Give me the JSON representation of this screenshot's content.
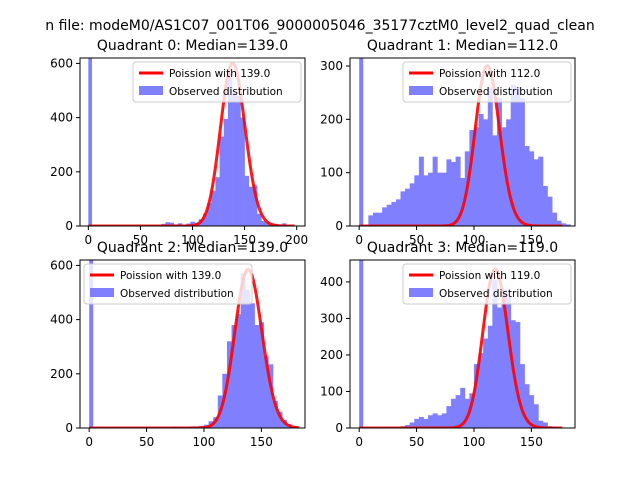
{
  "figure": {
    "suptitle": "n file: modeM0/AS1C07_001T06_9000005046_35177cztM0_level2_quad_clean",
    "colors": {
      "hist": "#8080ff",
      "curve": "#ff0000",
      "axes": "#000000",
      "background": "#ffffff"
    }
  },
  "chart_data": [
    {
      "type": "bar",
      "title": "Quadrant 0: Median=139.0",
      "legend": {
        "curve_label": "Poission with 139.0",
        "hist_label": "Observed distribution",
        "placement": "top-right"
      },
      "xlim": [
        -8,
        208
      ],
      "ylim": [
        0,
        620
      ],
      "xticks": [
        0,
        50,
        100,
        150,
        200
      ],
      "xtick_labels": [
        "0",
        "50",
        "100",
        "150",
        "200"
      ],
      "yticks": [
        0,
        200,
        400,
        600
      ],
      "ytick_labels": [
        "0",
        "200",
        "400",
        "600"
      ],
      "spike": {
        "x": 0,
        "width": 3.5,
        "height": 620
      },
      "bin_width": 3.9,
      "bins": [
        [
          70,
          8
        ],
        [
          74,
          14
        ],
        [
          78,
          12
        ],
        [
          82,
          6
        ],
        [
          86,
          10
        ],
        [
          90,
          5
        ],
        [
          94,
          9
        ],
        [
          98,
          16
        ],
        [
          102,
          12
        ],
        [
          106,
          25
        ],
        [
          110,
          45
        ],
        [
          114,
          85
        ],
        [
          118,
          130
        ],
        [
          122,
          180
        ],
        [
          126,
          330
        ],
        [
          130,
          395
        ],
        [
          134,
          565
        ],
        [
          138,
          490
        ],
        [
          142,
          480
        ],
        [
          146,
          400
        ],
        [
          150,
          185
        ],
        [
          154,
          145
        ],
        [
          158,
          150
        ],
        [
          162,
          45
        ],
        [
          166,
          18
        ],
        [
          170,
          15
        ],
        [
          174,
          10
        ],
        [
          178,
          8
        ],
        [
          182,
          5
        ],
        [
          186,
          10
        ],
        [
          190,
          3
        ]
      ],
      "poisson": {
        "mean": 139.0,
        "peak": 600,
        "x_range": [
          0,
          198
        ]
      }
    },
    {
      "type": "bar",
      "title": "Quadrant 1: Median=112.0",
      "legend": {
        "curve_label": "Poission with 112.0",
        "hist_label": "Observed distribution",
        "placement": "top-right"
      },
      "xlim": [
        -8,
        188
      ],
      "ylim": [
        0,
        315
      ],
      "xticks": [
        0,
        50,
        100,
        150
      ],
      "xtick_labels": [
        "0",
        "50",
        "100",
        "150"
      ],
      "yticks": [
        0,
        100,
        200,
        300
      ],
      "ytick_labels": [
        "0",
        "100",
        "200",
        "300"
      ],
      "spike": {
        "x": 0,
        "width": 3.5,
        "height": 315
      },
      "bin_width": 4.0,
      "bins": [
        [
          4,
          2
        ],
        [
          8,
          20
        ],
        [
          12,
          25
        ],
        [
          16,
          25
        ],
        [
          20,
          35
        ],
        [
          24,
          40
        ],
        [
          28,
          45
        ],
        [
          32,
          50
        ],
        [
          36,
          65
        ],
        [
          40,
          70
        ],
        [
          44,
          80
        ],
        [
          48,
          95
        ],
        [
          52,
          130
        ],
        [
          56,
          95
        ],
        [
          60,
          100
        ],
        [
          64,
          130
        ],
        [
          68,
          100
        ],
        [
          72,
          100
        ],
        [
          76,
          125
        ],
        [
          80,
          120
        ],
        [
          84,
          130
        ],
        [
          88,
          90
        ],
        [
          92,
          140
        ],
        [
          96,
          180
        ],
        [
          100,
          185
        ],
        [
          104,
          210
        ],
        [
          108,
          200
        ],
        [
          112,
          260
        ],
        [
          116,
          170
        ],
        [
          120,
          240
        ],
        [
          124,
          185
        ],
        [
          128,
          200
        ],
        [
          132,
          265
        ],
        [
          136,
          260
        ],
        [
          140,
          240
        ],
        [
          144,
          150
        ],
        [
          148,
          140
        ],
        [
          152,
          125
        ],
        [
          156,
          130
        ],
        [
          160,
          75
        ],
        [
          164,
          55
        ],
        [
          168,
          25
        ],
        [
          172,
          10
        ],
        [
          176,
          5
        ],
        [
          180,
          3
        ]
      ],
      "poisson": {
        "mean": 112.0,
        "peak": 300,
        "x_range": [
          0,
          177
        ]
      }
    },
    {
      "type": "bar",
      "title": "Quadrant 2: Median=139.0",
      "legend": {
        "curve_label": "Poission with 139.0",
        "hist_label": "Observed distribution",
        "placement": "top-left"
      },
      "xlim": [
        -8,
        188
      ],
      "ylim": [
        0,
        620
      ],
      "xticks": [
        0,
        50,
        100,
        150
      ],
      "xtick_labels": [
        "0",
        "50",
        "100",
        "150"
      ],
      "yticks": [
        0,
        200,
        400,
        600
      ],
      "ytick_labels": [
        "0",
        "200",
        "400",
        "600"
      ],
      "spike": {
        "x": 0,
        "width": 3.5,
        "height": 620
      },
      "bin_width": 4.0,
      "bins": [
        [
          72,
          5
        ],
        [
          76,
          4
        ],
        [
          80,
          3
        ],
        [
          84,
          5
        ],
        [
          88,
          6
        ],
        [
          92,
          6
        ],
        [
          96,
          8
        ],
        [
          100,
          12
        ],
        [
          104,
          25
        ],
        [
          108,
          40
        ],
        [
          112,
          120
        ],
        [
          116,
          200
        ],
        [
          120,
          320
        ],
        [
          124,
          380
        ],
        [
          128,
          420
        ],
        [
          132,
          570
        ],
        [
          136,
          510
        ],
        [
          140,
          460
        ],
        [
          144,
          380
        ],
        [
          148,
          390
        ],
        [
          152,
          265
        ],
        [
          156,
          235
        ],
        [
          160,
          100
        ],
        [
          164,
          60
        ],
        [
          168,
          30
        ],
        [
          172,
          15
        ],
        [
          176,
          8
        ]
      ],
      "poisson": {
        "mean": 139.0,
        "peak": 585,
        "x_range": [
          0,
          183
        ]
      }
    },
    {
      "type": "bar",
      "title": "Quadrant 3: Median=119.0",
      "legend": {
        "curve_label": "Poission with 119.0",
        "hist_label": "Observed distribution",
        "placement": "top-right"
      },
      "xlim": [
        -8,
        188
      ],
      "ylim": [
        0,
        460
      ],
      "xticks": [
        0,
        50,
        100,
        150
      ],
      "xtick_labels": [
        "0",
        "50",
        "100",
        "150"
      ],
      "yticks": [
        0,
        100,
        200,
        300,
        400
      ],
      "ytick_labels": [
        "0",
        "100",
        "200",
        "300",
        "400"
      ],
      "spike": {
        "x": 0,
        "width": 3.5,
        "height": 460
      },
      "bin_width": 4.0,
      "bins": [
        [
          36,
          5
        ],
        [
          40,
          8
        ],
        [
          44,
          15
        ],
        [
          48,
          25
        ],
        [
          52,
          30
        ],
        [
          56,
          25
        ],
        [
          60,
          35
        ],
        [
          64,
          40
        ],
        [
          68,
          35
        ],
        [
          72,
          40
        ],
        [
          76,
          60
        ],
        [
          80,
          80
        ],
        [
          84,
          90
        ],
        [
          88,
          110
        ],
        [
          92,
          80
        ],
        [
          96,
          95
        ],
        [
          100,
          175
        ],
        [
          104,
          205
        ],
        [
          108,
          245
        ],
        [
          112,
          280
        ],
        [
          116,
          405
        ],
        [
          120,
          330
        ],
        [
          124,
          380
        ],
        [
          128,
          360
        ],
        [
          132,
          295
        ],
        [
          136,
          290
        ],
        [
          140,
          175
        ],
        [
          144,
          120
        ],
        [
          148,
          90
        ],
        [
          152,
          65
        ],
        [
          156,
          20
        ],
        [
          160,
          15
        ],
        [
          164,
          5
        ],
        [
          168,
          3
        ]
      ],
      "poisson": {
        "mean": 119.0,
        "peak": 435,
        "x_range": [
          0,
          177
        ]
      }
    }
  ]
}
